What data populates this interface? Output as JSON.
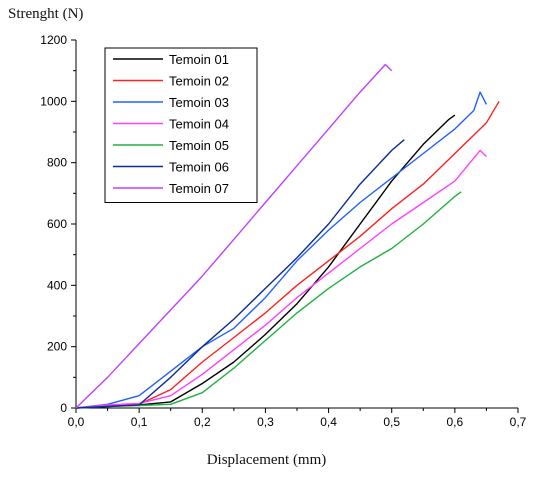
{
  "chart_data": {
    "type": "line",
    "ylabel": "Strenght (N)",
    "xlabel": "Displacement (mm)",
    "xlim": [
      0.0,
      0.7
    ],
    "ylim": [
      0,
      1200
    ],
    "xticks": [
      "0,0",
      "0,1",
      "0,2",
      "0,3",
      "0,4",
      "0,5",
      "0,6",
      "0,7"
    ],
    "xtick_values": [
      0.0,
      0.1,
      0.2,
      0.3,
      0.4,
      0.5,
      0.6,
      0.7
    ],
    "yticks": [
      "0",
      "200",
      "400",
      "600",
      "800",
      "1000",
      "1200"
    ],
    "ytick_values": [
      0,
      200,
      400,
      600,
      800,
      1000,
      1200
    ],
    "grid": false,
    "legend_position": "top-left",
    "series": [
      {
        "name": "Temoin 01",
        "color": "#000000",
        "x": [
          0.0,
          0.05,
          0.1,
          0.15,
          0.2,
          0.25,
          0.3,
          0.35,
          0.4,
          0.45,
          0.5,
          0.55,
          0.59,
          0.6
        ],
        "y": [
          0,
          8,
          10,
          20,
          80,
          150,
          240,
          340,
          460,
          600,
          740,
          860,
          940,
          955
        ]
      },
      {
        "name": "Temoin 02",
        "color": "#ff2020",
        "x": [
          0.0,
          0.05,
          0.1,
          0.15,
          0.2,
          0.25,
          0.3,
          0.35,
          0.4,
          0.45,
          0.5,
          0.55,
          0.6,
          0.65,
          0.67
        ],
        "y": [
          0,
          8,
          12,
          60,
          150,
          230,
          310,
          400,
          480,
          560,
          650,
          730,
          830,
          930,
          1000
        ]
      },
      {
        "name": "Temoin 03",
        "color": "#2060ff",
        "x": [
          0.0,
          0.05,
          0.1,
          0.15,
          0.2,
          0.25,
          0.3,
          0.35,
          0.4,
          0.45,
          0.5,
          0.55,
          0.6,
          0.63,
          0.64,
          0.65
        ],
        "y": [
          0,
          12,
          40,
          120,
          200,
          260,
          360,
          480,
          580,
          670,
          750,
          830,
          910,
          970,
          1030,
          990
        ]
      },
      {
        "name": "Temoin 04",
        "color": "#ff40ff",
        "x": [
          0.0,
          0.05,
          0.1,
          0.15,
          0.2,
          0.25,
          0.3,
          0.35,
          0.4,
          0.45,
          0.5,
          0.55,
          0.6,
          0.64,
          0.65
        ],
        "y": [
          0,
          10,
          15,
          40,
          110,
          190,
          270,
          360,
          440,
          520,
          600,
          670,
          740,
          840,
          820
        ]
      },
      {
        "name": "Temoin 05",
        "color": "#20b040",
        "x": [
          0.0,
          0.05,
          0.1,
          0.15,
          0.2,
          0.25,
          0.3,
          0.35,
          0.4,
          0.45,
          0.5,
          0.55,
          0.6,
          0.61
        ],
        "y": [
          0,
          5,
          8,
          12,
          50,
          130,
          220,
          310,
          390,
          460,
          520,
          600,
          690,
          705
        ]
      },
      {
        "name": "Temoin 06",
        "color": "#0a2a9a",
        "x": [
          0.0,
          0.05,
          0.1,
          0.15,
          0.2,
          0.25,
          0.3,
          0.35,
          0.4,
          0.45,
          0.5,
          0.52
        ],
        "y": [
          0,
          5,
          10,
          100,
          200,
          290,
          390,
          490,
          600,
          730,
          840,
          875
        ]
      },
      {
        "name": "Temoin 07",
        "color": "#c040ff",
        "x": [
          0.0,
          0.05,
          0.1,
          0.15,
          0.2,
          0.25,
          0.3,
          0.35,
          0.4,
          0.45,
          0.49,
          0.5
        ],
        "y": [
          0,
          100,
          210,
          320,
          430,
          550,
          670,
          790,
          910,
          1030,
          1120,
          1100
        ]
      }
    ]
  }
}
